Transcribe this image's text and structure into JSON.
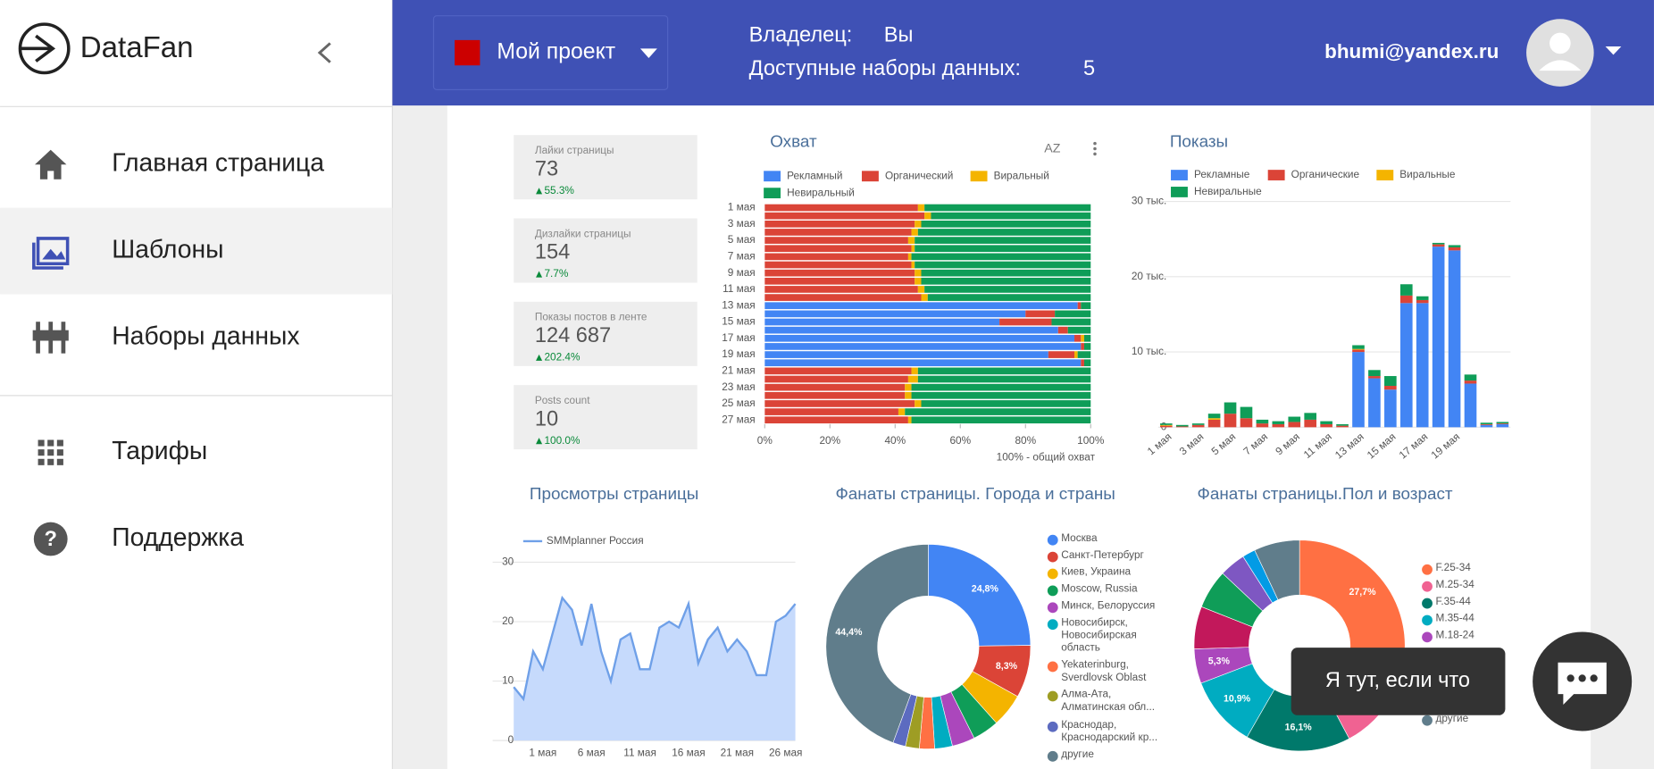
{
  "sidebar": {
    "logo": "DataFan",
    "nav": [
      "Главная страница",
      "Шаблоны",
      "Наборы данных",
      "Тарифы",
      "Поддержка"
    ]
  },
  "header": {
    "project": "Мой проект",
    "owner_label": "Владелец:",
    "owner": "Вы",
    "datasets_label": "Доступные наборы данных:",
    "datasets": "5",
    "email": "bhumi@yandex.ru"
  },
  "kpis": [
    {
      "label": "Лайки страницы",
      "value": "73",
      "change": "55.3%"
    },
    {
      "label": "Дизлайки страницы",
      "value": "154",
      "change": "7.7%"
    },
    {
      "label": "Показы постов в ленте",
      "value": "124 687",
      "change": "202.4%"
    },
    {
      "label": "Posts count",
      "value": "10",
      "change": "100.0%"
    }
  ],
  "chat": "Я тут, если что",
  "chart_data": [
    {
      "type": "bar",
      "orientation": "horizontal",
      "stacked": true,
      "title": "Охват",
      "x_label": "100% - общий охват",
      "categories": [
        "1 мая",
        null,
        "3 мая",
        null,
        "5 мая",
        null,
        "7 мая",
        null,
        "9 мая",
        null,
        "11 мая",
        null,
        "13 мая",
        null,
        "15 мая",
        null,
        "17 мая",
        null,
        "19 мая",
        null,
        "21 мая",
        null,
        "23 мая",
        null,
        "25 мая",
        null,
        "27 мая"
      ],
      "series": [
        {
          "name": "Рекламный",
          "color": "#4285f4",
          "values": [
            0,
            0,
            0,
            0,
            0,
            0,
            0,
            0,
            0,
            0,
            0,
            0,
            96,
            80,
            72,
            90,
            95,
            97,
            87,
            97,
            0,
            0,
            0,
            0,
            0,
            0,
            0
          ]
        },
        {
          "name": "Органический",
          "color": "#db4437",
          "values": [
            47,
            49,
            46,
            45,
            44,
            45,
            44,
            45,
            46,
            46,
            47,
            48,
            1,
            9,
            16,
            3,
            2,
            1,
            8,
            1,
            45,
            44,
            43,
            43,
            46,
            41,
            44
          ]
        },
        {
          "name": "Виральный",
          "color": "#f4b400",
          "values": [
            2,
            2,
            2,
            2,
            2,
            1,
            1,
            1,
            2,
            2,
            2,
            2,
            0,
            0,
            0,
            0,
            1,
            0,
            1,
            0,
            2,
            3,
            2,
            2,
            2,
            2,
            1
          ]
        },
        {
          "name": "Невиральный",
          "color": "#0f9d58",
          "values": [
            51,
            49,
            52,
            53,
            54,
            54,
            55,
            54,
            52,
            52,
            51,
            50,
            3,
            11,
            12,
            7,
            2,
            2,
            4,
            2,
            53,
            53,
            55,
            55,
            52,
            57,
            55
          ]
        }
      ],
      "xlim": [
        0,
        100
      ],
      "xticks": [
        {
          "value": 0,
          "label": "0%"
        },
        {
          "value": 20,
          "label": "20%"
        },
        {
          "value": 40,
          "label": "40%"
        },
        {
          "value": 60,
          "label": "60%"
        },
        {
          "value": 80,
          "label": "80%"
        },
        {
          "value": 100,
          "label": "100%"
        }
      ]
    },
    {
      "type": "bar",
      "orientation": "vertical",
      "stacked": true,
      "title": "Показы",
      "categories": [
        "1 мая",
        null,
        "3 мая",
        null,
        "5 мая",
        null,
        "7 мая",
        null,
        "9 мая",
        null,
        "11 мая",
        null,
        "13 мая",
        null,
        "15 мая",
        null,
        "17 мая",
        null,
        "19 мая",
        null,
        null,
        null
      ],
      "series": [
        {
          "name": "Рекламные",
          "color": "#4285f4",
          "values": [
            0,
            0,
            0,
            0,
            0,
            0,
            0,
            0,
            0,
            0,
            0,
            0,
            10000,
            6500,
            5000,
            16500,
            16500,
            24000,
            23500,
            5800,
            300,
            400
          ]
        },
        {
          "name": "Органические",
          "color": "#db4437",
          "values": [
            200,
            100,
            300,
            1000,
            1800,
            1200,
            500,
            400,
            700,
            1000,
            400,
            200,
            300,
            300,
            500,
            1000,
            400,
            300,
            400,
            400,
            100,
            100
          ]
        },
        {
          "name": "Виральные",
          "color": "#f4b400",
          "values": [
            100,
            0,
            0,
            200,
            0,
            0,
            0,
            0,
            0,
            0,
            0,
            0,
            100,
            0,
            0,
            0,
            0,
            0,
            0,
            0,
            0,
            0
          ]
        },
        {
          "name": "Невиральные",
          "color": "#0f9d58",
          "values": [
            200,
            200,
            200,
            600,
            1500,
            1500,
            500,
            400,
            700,
            900,
            400,
            200,
            500,
            800,
            1300,
            1500,
            500,
            200,
            300,
            800,
            200,
            200
          ]
        }
      ],
      "ylim": [
        0,
        30000
      ],
      "yticks": [
        0,
        {
          "value": 10000,
          "label": "10 тыс."
        },
        {
          "value": 20000,
          "label": "20 тыс."
        },
        {
          "value": 30000,
          "label": "30 тыс."
        }
      ],
      "grid": true
    },
    {
      "type": "line",
      "title": "Просмотры страницы",
      "categories": [
        null,
        null,
        null,
        "1 мая",
        null,
        null,
        null,
        null,
        "6 мая",
        null,
        null,
        null,
        null,
        "11 мая",
        null,
        null,
        null,
        null,
        "16 мая",
        null,
        null,
        null,
        null,
        "21 мая",
        null,
        null,
        null,
        null,
        "26 мая",
        null
      ],
      "series": [
        {
          "name": "SMMplanner Россия",
          "color": "#6fa0e8",
          "values": [
            9,
            7,
            15,
            12,
            18,
            24,
            22,
            16,
            23,
            15,
            10,
            17,
            18,
            12,
            12,
            19,
            20,
            19,
            23,
            13,
            17,
            19,
            15,
            17,
            15,
            11,
            11,
            20,
            21,
            23
          ]
        }
      ],
      "ylim": [
        0,
        30
      ],
      "yticks": [
        0,
        10,
        20,
        30
      ],
      "grid": true
    },
    {
      "type": "pie",
      "title": "Фанаты страницы. Города и страны",
      "categories": [
        "Москва",
        "Санкт-Петербург",
        "Киев, Украина",
        "Moscow, Russia",
        "Минск, Белоруссия",
        "Новосибирск, Новосибирская область",
        "Yekaterinburg, Sverdlovsk Oblast",
        "Алма-Ата, Алматинская обл...",
        "Краснодар, Краснодарский кр...",
        "другие"
      ],
      "values": [
        24.8,
        8.3,
        5.3,
        4.2,
        3.6,
        2.8,
        2.4,
        2.2,
        2.0,
        44.4
      ],
      "value_labels": [
        "24,8%",
        "8,3%",
        null,
        null,
        null,
        null,
        null,
        null,
        null,
        "44,4%"
      ],
      "colors": [
        "#4285f4",
        "#db4437",
        "#f4b400",
        "#0f9d58",
        "#ab47bc",
        "#00acc1",
        "#ff7043",
        "#9e9d24",
        "#5c6bc0",
        "#607d8b"
      ]
    },
    {
      "type": "pie",
      "title": "Фанаты страницы.Пол и возраст",
      "categories": [
        "F.25-34",
        "M.25-34",
        "F.35-44",
        "M.35-44",
        "M.18-24",
        null,
        null,
        null,
        null,
        "другие"
      ],
      "values": [
        27.7,
        14.5,
        16.1,
        10.9,
        5.3,
        6.5,
        6,
        4,
        2,
        7
      ],
      "value_labels": [
        "27,7%",
        null,
        "16,1%",
        "10,9%",
        "5,3%",
        null,
        null,
        null,
        null,
        null
      ],
      "colors": [
        "#ff7043",
        "#f06292",
        "#00796b",
        "#00acc1",
        "#ab47bc",
        "#c2185b",
        "#0f9d58",
        "#7e57c2",
        "#039be5",
        "#607d8b"
      ]
    }
  ]
}
